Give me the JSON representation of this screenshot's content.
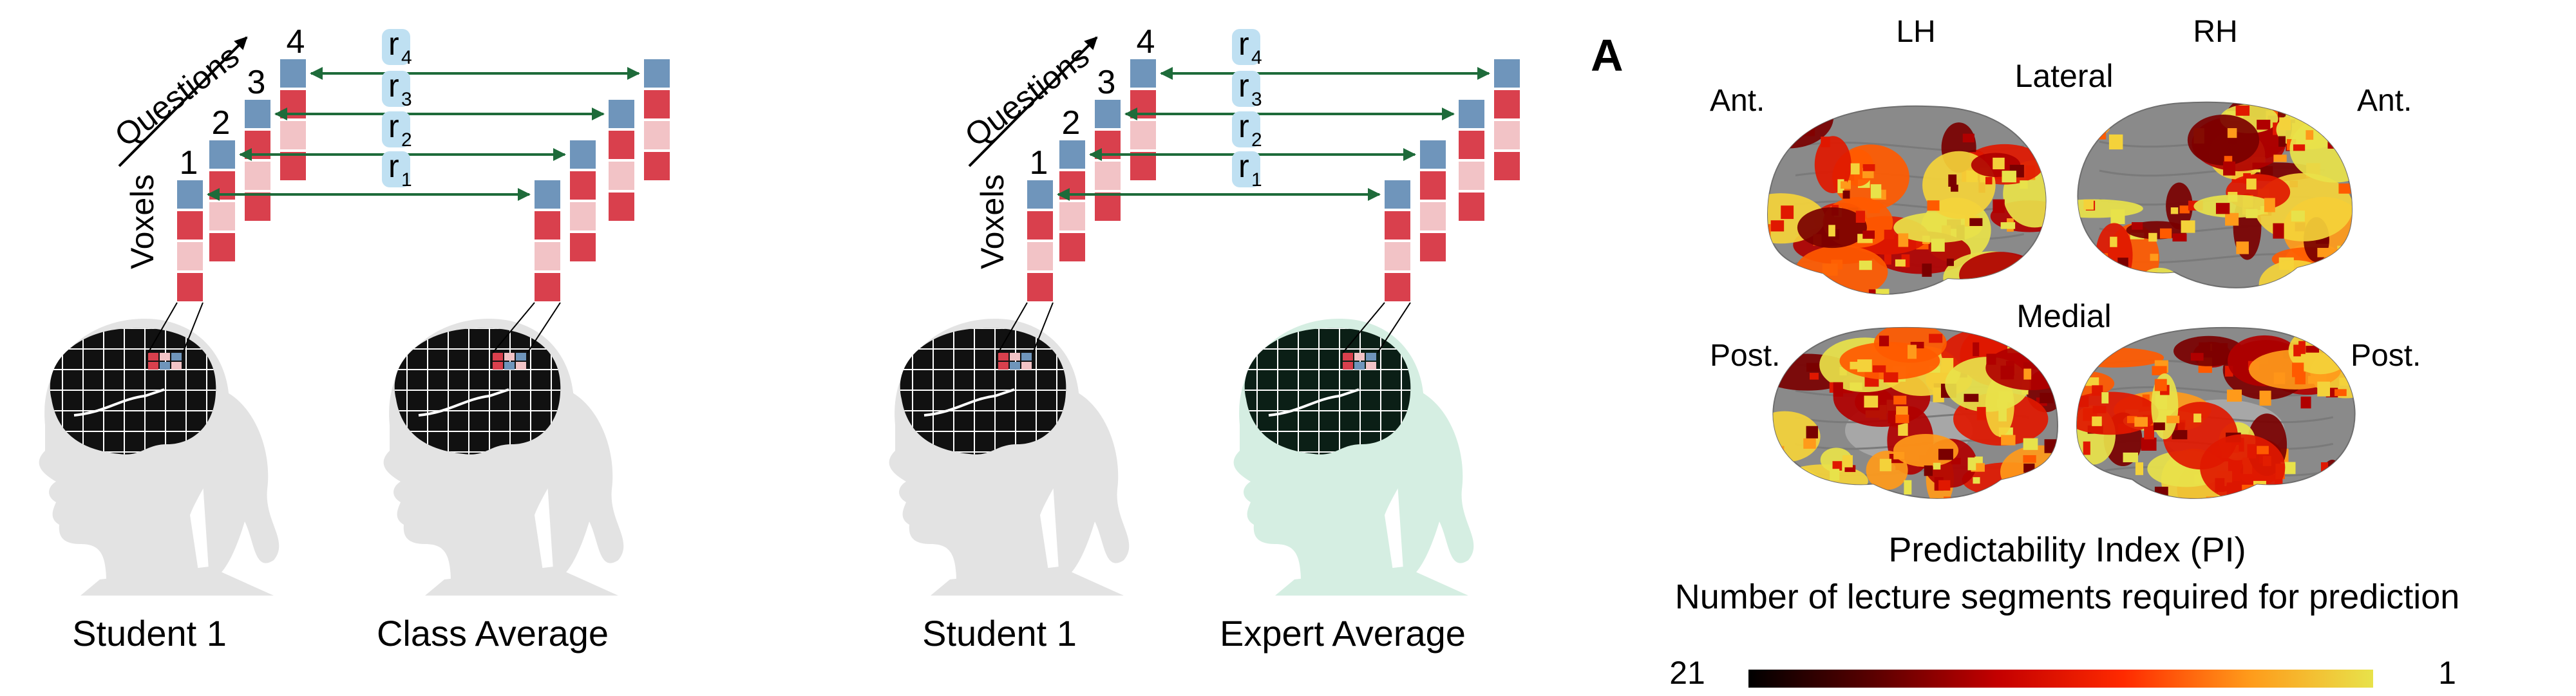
{
  "panels": [
    {
      "axis_voxels": "Voxels",
      "axis_questions": "Questions",
      "question_numbers": [
        "1",
        "2",
        "3",
        "4"
      ],
      "r_labels": [
        {
          "r": "r",
          "sub": "1"
        },
        {
          "r": "r",
          "sub": "2"
        },
        {
          "r": "r",
          "sub": "3"
        },
        {
          "r": "r",
          "sub": "4"
        }
      ],
      "left_head_label": "Student 1",
      "right_head_label": "Class Average",
      "right_head_tint": "#e3e3e3",
      "right_brain_fill": "#111111"
    },
    {
      "axis_voxels": "Voxels",
      "axis_questions": "Questions",
      "question_numbers": [
        "1",
        "2",
        "3",
        "4"
      ],
      "r_labels": [
        {
          "r": "r",
          "sub": "1"
        },
        {
          "r": "r",
          "sub": "2"
        },
        {
          "r": "r",
          "sub": "3"
        },
        {
          "r": "r",
          "sub": "4"
        }
      ],
      "left_head_label": "Student 1",
      "right_head_label": "Expert Average",
      "right_head_tint": "#d5eee2",
      "right_brain_fill": "#0b1f16"
    }
  ],
  "brain_panel": {
    "panel_letter": "A",
    "lh": "LH",
    "rh": "RH",
    "lateral": "Lateral",
    "medial": "Medial",
    "ant_left": "Ant.",
    "ant_right": "Ant.",
    "post_left": "Post.",
    "post_right": "Post.",
    "title": "Predictability Index (PI)",
    "subtitle": "Number of lecture segments required for prediction",
    "scale_min_label": "21",
    "scale_max_label": "1"
  },
  "colors": {
    "voxel_blue": "#6f95bb",
    "voxel_red": "#d9404d",
    "voxel_pink": "#f2c3c6",
    "arrow_green": "#1e6b3a",
    "r_highlight": "#bfe0f2",
    "head_gray": "#e3e3e3",
    "cortex_gray": "#8a8a8a",
    "colorbar": [
      "#000000",
      "#5a0000",
      "#c40000",
      "#ff2a00",
      "#ff9a1a",
      "#e8e24a"
    ]
  }
}
